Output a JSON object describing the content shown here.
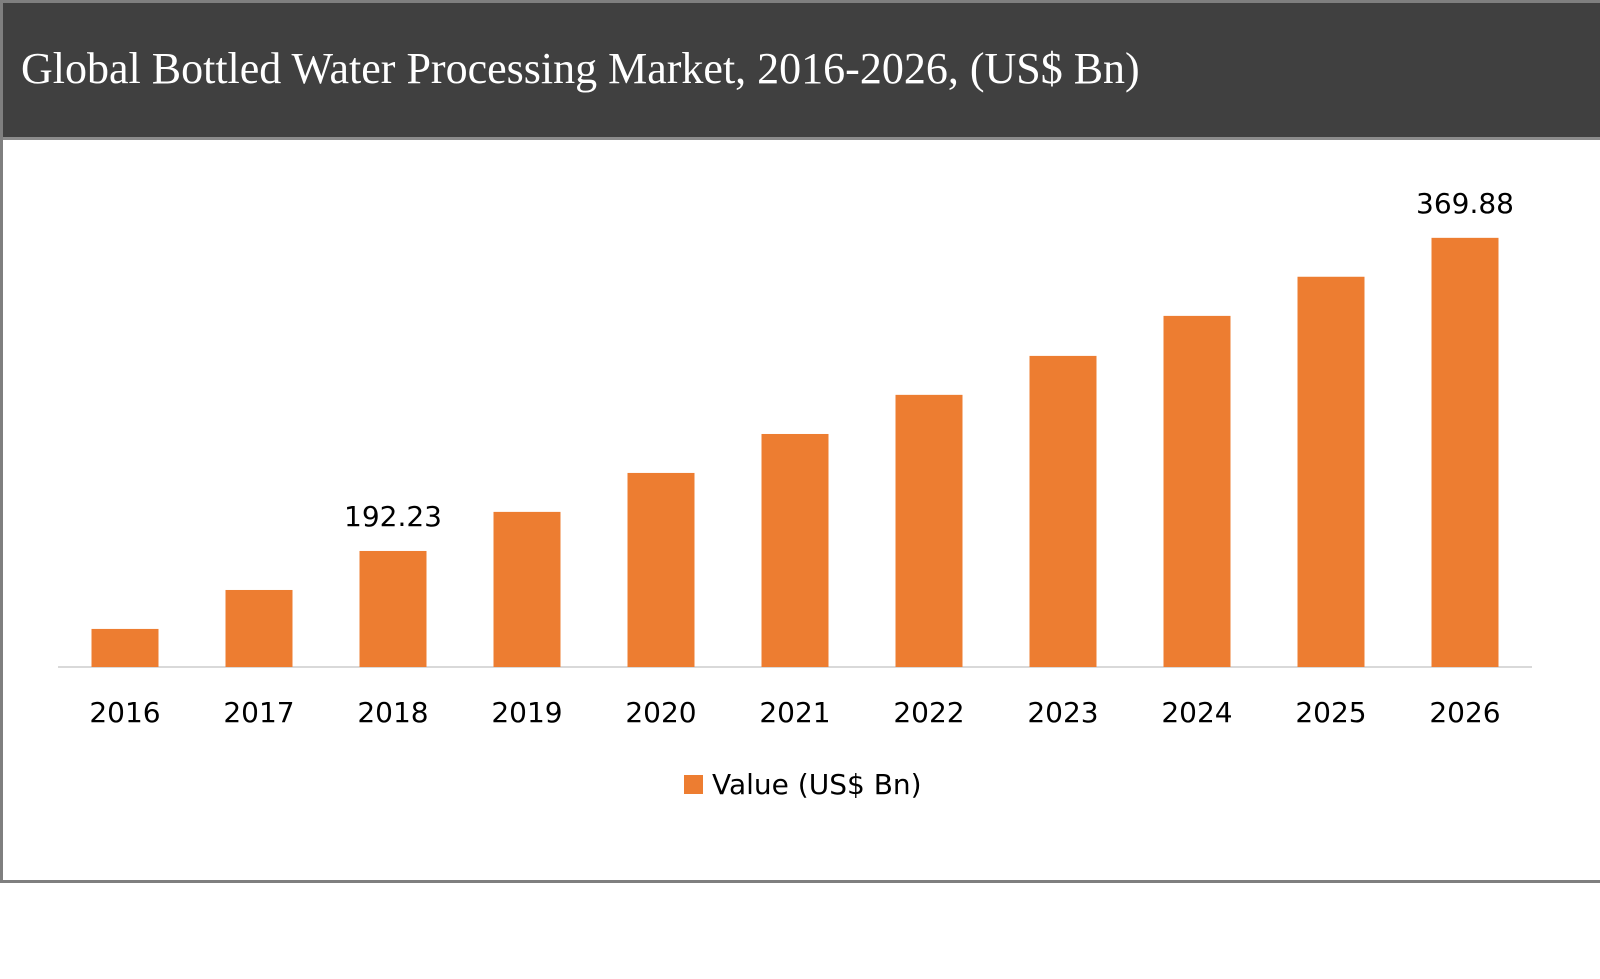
{
  "chart_data": {
    "type": "bar",
    "title": "Global Bottled Water Processing Market, 2016-2026, (US$ Bn)",
    "categories": [
      "2016",
      "2017",
      "2018",
      "2019",
      "2020",
      "2021",
      "2022",
      "2023",
      "2024",
      "2025",
      "2026"
    ],
    "series": [
      {
        "name": "Value (US$ Bn)",
        "values": [
          148.0,
          170.1,
          192.23,
          214.4,
          236.5,
          258.6,
          280.8,
          302.9,
          325.6,
          347.8,
          369.88
        ],
        "color": "#ed7d31"
      }
    ],
    "data_labels": {
      "2018": "192.23",
      "2026": "369.88"
    },
    "ylim": [
      126.4,
      380
    ],
    "y_axis_visible": false,
    "grid": false,
    "legend_position": "bottom"
  }
}
